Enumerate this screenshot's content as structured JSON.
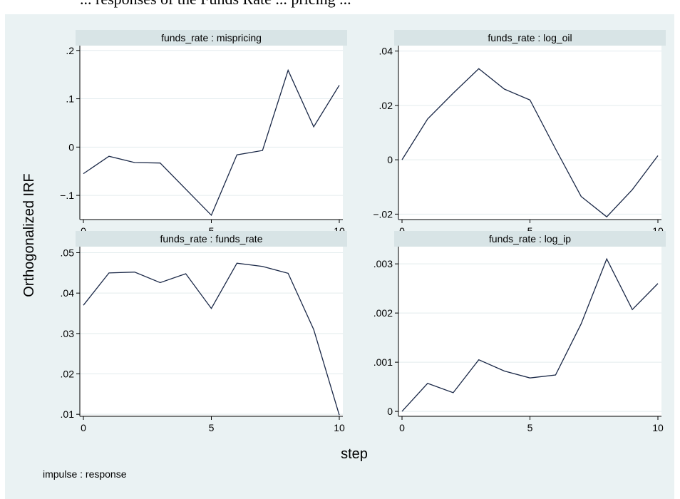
{
  "top_text": "... responses of the Funds Rate ... pricing ...",
  "chart_data": {
    "type": "line",
    "ylabel": "Orthogonalized IRF",
    "xlabel": "step",
    "note": "impulse : response",
    "x": [
      0,
      1,
      2,
      3,
      4,
      5,
      6,
      7,
      8,
      9,
      10
    ],
    "xlim": [
      0,
      10
    ],
    "xticks": [
      0,
      5,
      10
    ],
    "xtick_labels": [
      "0",
      "5",
      "10"
    ],
    "grid": true,
    "panels": [
      {
        "title": "funds_rate : mispricing",
        "ylim": [
          -0.15,
          0.21
        ],
        "yticks": [
          -0.1,
          0,
          0.1,
          0.2
        ],
        "ytick_labels": [
          "−.1",
          "0",
          ".1",
          ".2"
        ],
        "values": [
          -0.055,
          -0.019,
          -0.032,
          -0.033,
          -0.087,
          -0.141,
          -0.016,
          -0.007,
          0.159,
          0.042,
          0.128
        ]
      },
      {
        "title": "funds_rate : log_oil",
        "ylim": [
          -0.022,
          0.042
        ],
        "yticks": [
          -0.02,
          0,
          0.02,
          0.04
        ],
        "ytick_labels": [
          "−.02",
          "0",
          ".02",
          ".04"
        ],
        "values": [
          0.0,
          0.015,
          0.0245,
          0.0335,
          0.026,
          0.022,
          0.004,
          -0.0135,
          -0.021,
          -0.011,
          0.0015
        ]
      },
      {
        "title": "funds_rate : funds_rate",
        "ylim": [
          0.0095,
          0.0515
        ],
        "yticks": [
          0.01,
          0.02,
          0.03,
          0.04,
          0.05
        ],
        "ytick_labels": [
          ".01",
          ".02",
          ".03",
          ".04",
          ".05"
        ],
        "values": [
          0.037,
          0.045,
          0.0452,
          0.0426,
          0.0448,
          0.0362,
          0.0474,
          0.0466,
          0.0449,
          0.031,
          0.0098
        ]
      },
      {
        "title": "funds_rate : log_ip",
        "ylim": [
          -0.0001,
          0.00335
        ],
        "yticks": [
          0,
          0.001,
          0.002,
          0.003
        ],
        "ytick_labels": [
          "0",
          ".001",
          ".002",
          ".003"
        ],
        "values": [
          0.0,
          0.00057,
          0.00038,
          0.00105,
          0.00082,
          0.00068,
          0.00074,
          0.00178,
          0.0031,
          0.00207,
          0.0026
        ]
      }
    ]
  },
  "colors": {
    "figure_background": "#eaf2f3",
    "plot_background": "#ffffff",
    "title_strip": "#d8e4e6",
    "gridline": "#e3ecee",
    "series_line": "#1a2847"
  }
}
